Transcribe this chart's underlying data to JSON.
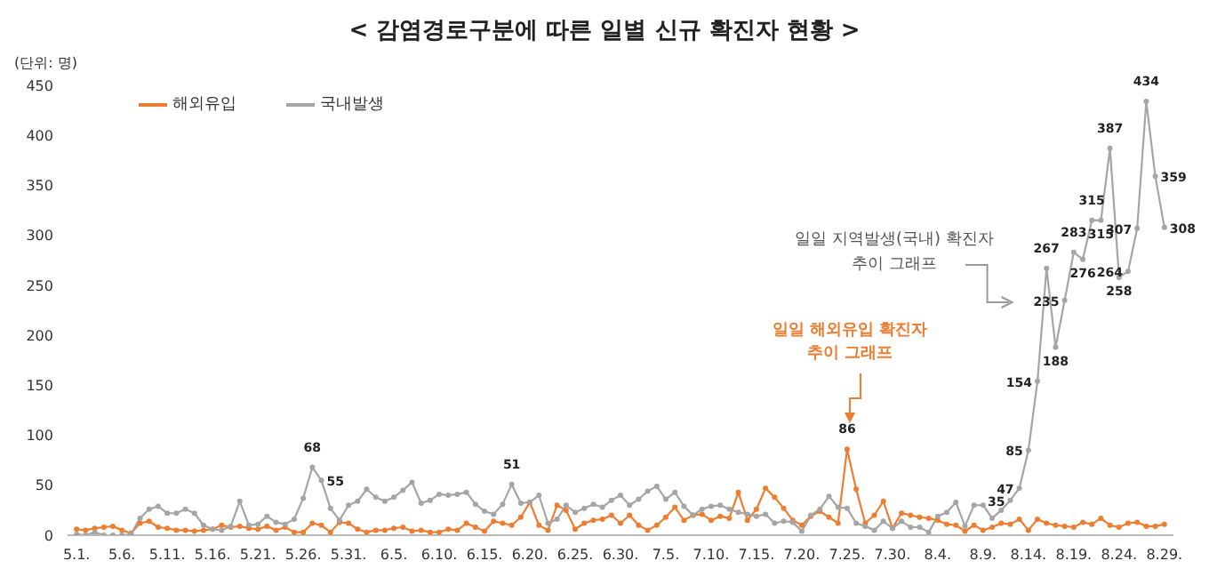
{
  "chart_data": {
    "type": "line",
    "title": "< 감염경로구분에 따른 일별 신규 확진자 현황 >",
    "ylabel": "(단위: 명)",
    "categories": [
      "5.1.",
      null,
      null,
      null,
      null,
      "5.6.",
      null,
      null,
      null,
      null,
      "5.11.",
      null,
      null,
      null,
      null,
      "5.16.",
      null,
      null,
      null,
      null,
      "5.21.",
      null,
      null,
      null,
      null,
      "5.26.",
      null,
      null,
      null,
      null,
      "5.31.",
      null,
      null,
      null,
      null,
      "6.5.",
      null,
      null,
      null,
      null,
      "6.10.",
      null,
      null,
      null,
      null,
      "6.15.",
      null,
      null,
      null,
      null,
      "6.20.",
      null,
      null,
      null,
      null,
      "6.25.",
      null,
      null,
      null,
      null,
      "6.30.",
      null,
      null,
      null,
      null,
      "7.5.",
      null,
      null,
      null,
      null,
      "7.10.",
      null,
      null,
      null,
      null,
      "7.15.",
      null,
      null,
      null,
      null,
      "7.20.",
      null,
      null,
      null,
      null,
      "7.25.",
      null,
      null,
      null,
      null,
      "7.30.",
      null,
      null,
      null,
      null,
      "8.4.",
      null,
      null,
      null,
      null,
      "8.9.",
      null,
      null,
      null,
      null,
      "8.14.",
      null,
      null,
      null,
      null,
      "8.19.",
      null,
      null,
      null,
      null,
      "8.24.",
      null,
      null,
      null,
      null,
      "8.29."
    ],
    "series": [
      {
        "name": "해외유입",
        "color": "#ed7d31",
        "values": [
          6,
          5,
          7,
          8,
          9,
          5,
          2,
          12,
          14,
          8,
          7,
          5,
          5,
          4,
          5,
          6,
          10,
          8,
          9,
          7,
          6,
          9,
          5,
          8,
          3,
          3,
          12,
          10,
          3,
          13,
          12,
          6,
          3,
          5,
          5,
          7,
          8,
          4,
          5,
          3,
          3,
          6,
          5,
          12,
          8,
          4,
          14,
          12,
          10,
          18,
          33,
          10,
          5,
          30,
          25,
          6,
          12,
          15,
          16,
          20,
          12,
          20,
          10,
          5,
          10,
          18,
          28,
          15,
          20,
          21,
          15,
          19,
          17,
          43,
          15,
          26,
          47,
          38,
          27,
          15,
          10,
          19,
          24,
          18,
          12,
          86,
          46,
          12,
          20,
          34,
          7,
          22,
          20,
          18,
          17,
          15,
          11,
          10,
          4,
          10,
          5,
          8,
          12,
          11,
          16,
          5,
          16,
          12,
          10,
          9,
          8,
          13,
          11,
          17,
          10,
          8,
          12,
          13,
          9,
          9,
          11
        ],
        "value_labels": [
          null,
          null,
          null,
          null,
          null,
          null,
          null,
          null,
          null,
          null,
          null,
          null,
          null,
          null,
          null,
          null,
          null,
          null,
          null,
          null,
          null,
          null,
          null,
          null,
          null,
          null,
          null,
          null,
          null,
          null,
          null,
          null,
          null,
          null,
          null,
          null,
          null,
          null,
          null,
          null,
          null,
          null,
          null,
          null,
          null,
          null,
          null,
          null,
          null,
          null,
          null,
          null,
          null,
          null,
          null,
          null,
          null,
          null,
          null,
          null,
          null,
          null,
          null,
          null,
          null,
          null,
          null,
          null,
          null,
          null,
          null,
          null,
          null,
          null,
          null,
          null,
          null,
          null,
          null,
          null,
          null,
          null,
          null,
          null,
          null,
          "86",
          null,
          null,
          null,
          null,
          null,
          null,
          null,
          null,
          null,
          null,
          null,
          null,
          null,
          null,
          null,
          null,
          null,
          null,
          null,
          null,
          null,
          null,
          null,
          null,
          null,
          null,
          null,
          null,
          null,
          null,
          null,
          null,
          null,
          null,
          null
        ]
      },
      {
        "name": "국내발생",
        "color": "#a5a5a5",
        "values": [
          1,
          0,
          3,
          0,
          0,
          0,
          1,
          17,
          26,
          29,
          22,
          22,
          26,
          22,
          10,
          6,
          5,
          9,
          34,
          10,
          11,
          19,
          13,
          11,
          16,
          37,
          68,
          55,
          27,
          15,
          30,
          34,
          46,
          38,
          34,
          38,
          45,
          53,
          32,
          35,
          41,
          40,
          41,
          43,
          31,
          24,
          21,
          31,
          51,
          32,
          33,
          40,
          12,
          16,
          30,
          23,
          27,
          31,
          28,
          35,
          40,
          30,
          36,
          44,
          49,
          36,
          43,
          29,
          20,
          26,
          29,
          30,
          26,
          23,
          21,
          19,
          21,
          12,
          14,
          13,
          4,
          20,
          26,
          39,
          28,
          27,
          12,
          9,
          5,
          14,
          7,
          14,
          8,
          8,
          3,
          19,
          23,
          33,
          9,
          30,
          30,
          17,
          25,
          35,
          47,
          85,
          154,
          267,
          188,
          235,
          283,
          276,
          315,
          315,
          387,
          258,
          264,
          307,
          434,
          359,
          308
        ],
        "value_labels": [
          null,
          null,
          null,
          null,
          null,
          null,
          null,
          null,
          null,
          null,
          null,
          null,
          null,
          null,
          null,
          null,
          null,
          null,
          null,
          null,
          null,
          null,
          null,
          null,
          null,
          null,
          "68",
          "55",
          null,
          null,
          null,
          null,
          null,
          null,
          null,
          null,
          null,
          null,
          null,
          null,
          null,
          null,
          null,
          null,
          null,
          null,
          null,
          null,
          "51",
          null,
          null,
          null,
          null,
          null,
          null,
          null,
          null,
          null,
          null,
          null,
          null,
          null,
          null,
          null,
          null,
          null,
          null,
          null,
          null,
          null,
          null,
          null,
          null,
          null,
          null,
          null,
          null,
          null,
          null,
          null,
          null,
          null,
          null,
          null,
          null,
          null,
          null,
          null,
          null,
          null,
          null,
          null,
          null,
          null,
          null,
          null,
          null,
          null,
          null,
          null,
          null,
          null,
          null,
          "35",
          "47",
          "85",
          "154",
          "267",
          "188",
          "235",
          "283",
          "276",
          "315",
          "315",
          "387",
          "258",
          "264",
          "307",
          "434",
          "359",
          "308"
        ]
      }
    ],
    "ylim": [
      0,
      450
    ],
    "yticks": [
      0,
      50,
      100,
      150,
      200,
      250,
      300,
      350,
      400,
      450
    ],
    "grid": false,
    "legend": "top left",
    "marker": "circle",
    "line_style": "solid",
    "annotations": [
      "일일 지역발생(국내) 확진자\n추이 그래프",
      "일일 해외유입 확진자\n추이 그래프"
    ]
  }
}
